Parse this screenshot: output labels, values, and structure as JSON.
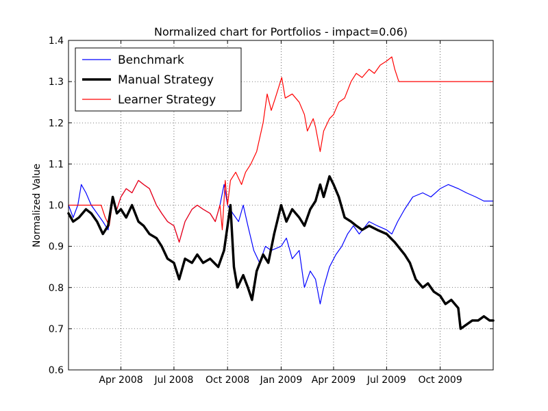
{
  "chart_data": {
    "type": "line",
    "title": "Normalized chart for Portfolios - impact=0.06)",
    "xlabel": "",
    "ylabel": "Normalized Value",
    "x_start": "2008-01-02",
    "x_end": "2009-12-31",
    "xlim": [
      "2008-01-02",
      "2009-12-31"
    ],
    "ylim": [
      0.6,
      1.4
    ],
    "y_ticks": [
      "0.6",
      "0.7",
      "0.8",
      "0.9",
      "1.0",
      "1.1",
      "1.2",
      "1.3",
      "1.4"
    ],
    "x_ticks": [
      {
        "label": "Apr 2008",
        "date": "2008-04-01"
      },
      {
        "label": "Jul 2008",
        "date": "2008-07-01"
      },
      {
        "label": "Oct 2008",
        "date": "2008-10-01"
      },
      {
        "label": "Jan 2009",
        "date": "2009-01-01"
      },
      {
        "label": "Apr 2009",
        "date": "2009-04-01"
      },
      {
        "label": "Jul 2009",
        "date": "2009-07-01"
      },
      {
        "label": "Oct 2009",
        "date": "2009-10-01"
      }
    ],
    "grid": true,
    "legend_position": "top-left",
    "series": [
      {
        "name": "Benchmark",
        "color": "#0000ff",
        "style": "thin",
        "points": [
          [
            "2008-01-02",
            1.0
          ],
          [
            "2008-01-10",
            0.97
          ],
          [
            "2008-01-18",
            1.0
          ],
          [
            "2008-01-24",
            1.05
          ],
          [
            "2008-02-01",
            1.03
          ],
          [
            "2008-02-10",
            1.0
          ],
          [
            "2008-02-20",
            0.98
          ],
          [
            "2008-03-01",
            0.96
          ],
          [
            "2008-03-10",
            0.94
          ],
          [
            "2008-03-18",
            1.01
          ],
          [
            "2008-03-25",
            0.99
          ],
          [
            "2008-04-01",
            1.02
          ],
          [
            "2008-04-10",
            1.04
          ],
          [
            "2008-04-20",
            1.03
          ],
          [
            "2008-05-01",
            1.06
          ],
          [
            "2008-05-10",
            1.05
          ],
          [
            "2008-05-20",
            1.04
          ],
          [
            "2008-06-01",
            1.0
          ],
          [
            "2008-06-10",
            0.98
          ],
          [
            "2008-06-20",
            0.96
          ],
          [
            "2008-07-01",
            0.95
          ],
          [
            "2008-07-10",
            0.91
          ],
          [
            "2008-07-20",
            0.96
          ],
          [
            "2008-08-01",
            0.99
          ],
          [
            "2008-08-10",
            1.0
          ],
          [
            "2008-08-20",
            0.99
          ],
          [
            "2008-09-01",
            0.98
          ],
          [
            "2008-09-10",
            0.96
          ],
          [
            "2008-09-18",
            1.0
          ],
          [
            "2008-09-25",
            1.05
          ],
          [
            "2008-10-01",
            1.0
          ],
          [
            "2008-10-10",
            0.98
          ],
          [
            "2008-10-20",
            0.96
          ],
          [
            "2008-10-28",
            1.0
          ],
          [
            "2008-11-05",
            0.95
          ],
          [
            "2008-11-15",
            0.89
          ],
          [
            "2008-11-25",
            0.86
          ],
          [
            "2008-12-05",
            0.9
          ],
          [
            "2008-12-15",
            0.89
          ],
          [
            "2009-01-01",
            0.9
          ],
          [
            "2009-01-10",
            0.92
          ],
          [
            "2009-01-20",
            0.87
          ],
          [
            "2009-02-01",
            0.89
          ],
          [
            "2009-02-10",
            0.8
          ],
          [
            "2009-02-20",
            0.84
          ],
          [
            "2009-03-01",
            0.82
          ],
          [
            "2009-03-09",
            0.76
          ],
          [
            "2009-03-15",
            0.8
          ],
          [
            "2009-03-25",
            0.85
          ],
          [
            "2009-04-05",
            0.88
          ],
          [
            "2009-04-15",
            0.9
          ],
          [
            "2009-04-25",
            0.93
          ],
          [
            "2009-05-05",
            0.95
          ],
          [
            "2009-05-15",
            0.93
          ],
          [
            "2009-06-01",
            0.96
          ],
          [
            "2009-06-15",
            0.95
          ],
          [
            "2009-07-01",
            0.94
          ],
          [
            "2009-07-10",
            0.93
          ],
          [
            "2009-07-20",
            0.96
          ],
          [
            "2009-08-01",
            0.99
          ],
          [
            "2009-08-15",
            1.02
          ],
          [
            "2009-09-01",
            1.03
          ],
          [
            "2009-09-15",
            1.02
          ],
          [
            "2009-10-01",
            1.04
          ],
          [
            "2009-10-15",
            1.05
          ],
          [
            "2009-11-01",
            1.04
          ],
          [
            "2009-11-15",
            1.03
          ],
          [
            "2009-12-01",
            1.02
          ],
          [
            "2009-12-15",
            1.01
          ],
          [
            "2009-12-31",
            1.01
          ]
        ]
      },
      {
        "name": "Manual Strategy",
        "color": "#000000",
        "style": "thick",
        "points": [
          [
            "2008-01-02",
            0.98
          ],
          [
            "2008-01-10",
            0.96
          ],
          [
            "2008-01-20",
            0.97
          ],
          [
            "2008-02-01",
            0.99
          ],
          [
            "2008-02-10",
            0.98
          ],
          [
            "2008-02-20",
            0.96
          ],
          [
            "2008-03-01",
            0.93
          ],
          [
            "2008-03-10",
            0.95
          ],
          [
            "2008-03-18",
            1.02
          ],
          [
            "2008-03-25",
            0.98
          ],
          [
            "2008-04-01",
            0.99
          ],
          [
            "2008-04-10",
            0.97
          ],
          [
            "2008-04-20",
            1.0
          ],
          [
            "2008-05-01",
            0.96
          ],
          [
            "2008-05-10",
            0.95
          ],
          [
            "2008-05-20",
            0.93
          ],
          [
            "2008-06-01",
            0.92
          ],
          [
            "2008-06-10",
            0.9
          ],
          [
            "2008-06-20",
            0.87
          ],
          [
            "2008-07-01",
            0.86
          ],
          [
            "2008-07-10",
            0.82
          ],
          [
            "2008-07-20",
            0.87
          ],
          [
            "2008-08-01",
            0.86
          ],
          [
            "2008-08-10",
            0.88
          ],
          [
            "2008-08-20",
            0.86
          ],
          [
            "2008-09-01",
            0.87
          ],
          [
            "2008-09-15",
            0.85
          ],
          [
            "2008-09-25",
            0.89
          ],
          [
            "2008-10-01",
            0.95
          ],
          [
            "2008-10-06",
            1.0
          ],
          [
            "2008-10-12",
            0.85
          ],
          [
            "2008-10-18",
            0.8
          ],
          [
            "2008-10-28",
            0.83
          ],
          [
            "2008-11-05",
            0.8
          ],
          [
            "2008-11-12",
            0.77
          ],
          [
            "2008-11-20",
            0.84
          ],
          [
            "2008-12-01",
            0.88
          ],
          [
            "2008-12-10",
            0.86
          ],
          [
            "2008-12-20",
            0.93
          ],
          [
            "2009-01-01",
            1.0
          ],
          [
            "2009-01-10",
            0.96
          ],
          [
            "2009-01-20",
            0.99
          ],
          [
            "2009-02-01",
            0.97
          ],
          [
            "2009-02-10",
            0.95
          ],
          [
            "2009-02-20",
            0.99
          ],
          [
            "2009-03-01",
            1.01
          ],
          [
            "2009-03-09",
            1.05
          ],
          [
            "2009-03-15",
            1.02
          ],
          [
            "2009-03-25",
            1.07
          ],
          [
            "2009-04-01",
            1.05
          ],
          [
            "2009-04-10",
            1.02
          ],
          [
            "2009-04-20",
            0.97
          ],
          [
            "2009-05-01",
            0.96
          ],
          [
            "2009-05-10",
            0.95
          ],
          [
            "2009-05-20",
            0.94
          ],
          [
            "2009-06-01",
            0.95
          ],
          [
            "2009-06-15",
            0.94
          ],
          [
            "2009-07-01",
            0.93
          ],
          [
            "2009-07-15",
            0.91
          ],
          [
            "2009-08-01",
            0.88
          ],
          [
            "2009-08-10",
            0.86
          ],
          [
            "2009-08-20",
            0.82
          ],
          [
            "2009-09-01",
            0.8
          ],
          [
            "2009-09-10",
            0.81
          ],
          [
            "2009-09-20",
            0.79
          ],
          [
            "2009-10-01",
            0.78
          ],
          [
            "2009-10-10",
            0.76
          ],
          [
            "2009-10-20",
            0.77
          ],
          [
            "2009-11-01",
            0.75
          ],
          [
            "2009-11-05",
            0.7
          ],
          [
            "2009-11-15",
            0.71
          ],
          [
            "2009-11-25",
            0.72
          ],
          [
            "2009-12-05",
            0.72
          ],
          [
            "2009-12-15",
            0.73
          ],
          [
            "2009-12-25",
            0.72
          ],
          [
            "2009-12-31",
            0.72
          ]
        ]
      },
      {
        "name": "Learner Strategy",
        "color": "#ff0000",
        "style": "thin",
        "points": [
          [
            "2008-01-02",
            1.0
          ],
          [
            "2008-02-27",
            1.0
          ],
          [
            "2008-03-05",
            0.97
          ],
          [
            "2008-03-12",
            0.95
          ],
          [
            "2008-03-18",
            1.01
          ],
          [
            "2008-03-25",
            0.99
          ],
          [
            "2008-04-01",
            1.02
          ],
          [
            "2008-04-10",
            1.04
          ],
          [
            "2008-04-20",
            1.03
          ],
          [
            "2008-05-01",
            1.06
          ],
          [
            "2008-05-10",
            1.05
          ],
          [
            "2008-05-20",
            1.04
          ],
          [
            "2008-06-01",
            1.0
          ],
          [
            "2008-06-10",
            0.98
          ],
          [
            "2008-06-20",
            0.96
          ],
          [
            "2008-07-01",
            0.95
          ],
          [
            "2008-07-10",
            0.91
          ],
          [
            "2008-07-20",
            0.96
          ],
          [
            "2008-08-01",
            0.99
          ],
          [
            "2008-08-10",
            1.0
          ],
          [
            "2008-08-20",
            0.99
          ],
          [
            "2008-09-01",
            0.98
          ],
          [
            "2008-09-10",
            0.96
          ],
          [
            "2008-09-18",
            1.0
          ],
          [
            "2008-09-22",
            0.94
          ],
          [
            "2008-09-27",
            1.06
          ],
          [
            "2008-10-01",
            1.0
          ],
          [
            "2008-10-06",
            1.06
          ],
          [
            "2008-10-15",
            1.08
          ],
          [
            "2008-10-25",
            1.05
          ],
          [
            "2008-11-01",
            1.08
          ],
          [
            "2008-11-10",
            1.1
          ],
          [
            "2008-11-20",
            1.13
          ],
          [
            "2008-12-01",
            1.2
          ],
          [
            "2008-12-08",
            1.27
          ],
          [
            "2008-12-15",
            1.23
          ],
          [
            "2008-12-22",
            1.26
          ],
          [
            "2009-01-02",
            1.31
          ],
          [
            "2009-01-08",
            1.26
          ],
          [
            "2009-01-20",
            1.27
          ],
          [
            "2009-02-01",
            1.25
          ],
          [
            "2009-02-10",
            1.22
          ],
          [
            "2009-02-15",
            1.18
          ],
          [
            "2009-02-25",
            1.21
          ],
          [
            "2009-03-01",
            1.19
          ],
          [
            "2009-03-09",
            1.13
          ],
          [
            "2009-03-15",
            1.18
          ],
          [
            "2009-03-25",
            1.21
          ],
          [
            "2009-04-01",
            1.22
          ],
          [
            "2009-04-10",
            1.25
          ],
          [
            "2009-04-20",
            1.26
          ],
          [
            "2009-05-01",
            1.3
          ],
          [
            "2009-05-10",
            1.32
          ],
          [
            "2009-05-20",
            1.31
          ],
          [
            "2009-06-01",
            1.33
          ],
          [
            "2009-06-10",
            1.32
          ],
          [
            "2009-06-20",
            1.34
          ],
          [
            "2009-07-01",
            1.35
          ],
          [
            "2009-07-10",
            1.36
          ],
          [
            "2009-07-15",
            1.33
          ],
          [
            "2009-07-22",
            1.3
          ],
          [
            "2009-12-31",
            1.3
          ]
        ]
      }
    ]
  }
}
